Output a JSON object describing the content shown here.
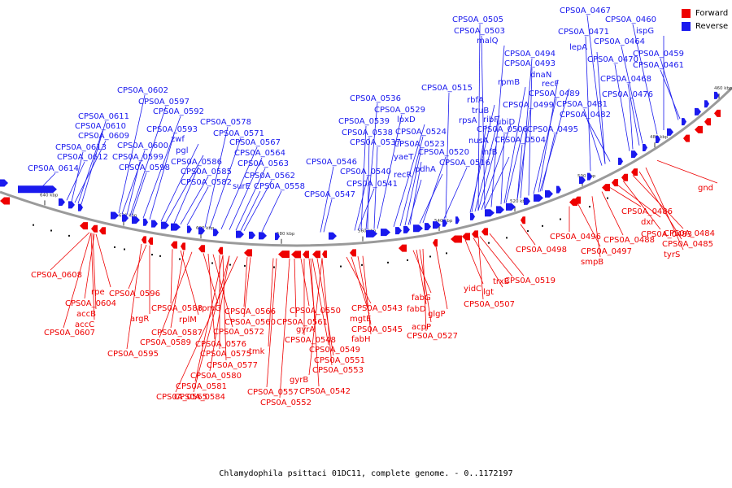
{
  "caption": "Chlamydophila psittaci 01DC11, complete genome. - 0..1172197",
  "legend": [
    {
      "label": "Forward",
      "color": "#ee0000"
    },
    {
      "label": "Reverse",
      "color": "#1a1aee"
    }
  ],
  "colors": {
    "forward": "#ee0000",
    "reverse": "#1a1aee",
    "backbone": "#9a9a9a"
  },
  "ticks": [
    "640 kbp",
    "620 kbp",
    "600 kbp",
    "580 kbp",
    "560 kbp",
    "540 kbp",
    "520 kbp",
    "500 kbp",
    "480 kbp",
    "460 kbp"
  ],
  "reverse_labels": [
    "CPS0A_0614",
    "CPS0A_0612",
    "CPS0A_0613",
    "CPS0A_0609",
    "CPS0A_0610",
    "CPS0A_0611",
    "CPS0A_0602",
    "CPS0A_0597",
    "CPS0A_0592",
    "CPS0A_0593",
    "CPS0A_0600",
    "CPS0A_0599",
    "CPS0A_0598",
    "zwf",
    "pgl",
    "CPS0A_0586",
    "CPS0A_0585",
    "CPS0A_0582",
    "CPS0A_0578",
    "CPS0A_0571",
    "CPS0A_0567",
    "CPS0A_0564",
    "CPS0A_0563",
    "CPS0A_0562",
    "surE",
    "CPS0A_0558",
    "CPS0A_0546",
    "CPS0A_0540",
    "CPS0A_0541",
    "CPS0A_0547",
    "CPS0A_0536",
    "CPS0A_0529",
    "CPS0A_0539",
    "CPS0A_0538",
    "CPS0A_0537",
    "lpxD",
    "CPS0A_0524",
    "CPS0A_0523",
    "yaeT",
    "recR",
    "pdhA",
    "CPS0A_0520",
    "CPS0A_0516",
    "CPS0A_0515",
    "rbfA",
    "truB",
    "rpsA",
    "ribF",
    "nusA",
    "infB",
    "CPS0A_0505",
    "CPS0A_0503",
    "malQ",
    "rpmB",
    "ubiD",
    "CPS0A_0506",
    "CPS0A_0504",
    "CPS0A_0494",
    "CPS0A_0493",
    "dnaN",
    "recF",
    "CPS0A_0489",
    "CPS0A_0499",
    "CPS0A_0495",
    "CPS0A_0467",
    "CPS0A_0460",
    "CPS0A_0471",
    "ispG",
    "lepA",
    "CPS0A_0464",
    "CPS0A_0459",
    "CPS0A_0470",
    "CPS0A_0461",
    "CPS0A_0468",
    "CPS0A_0476",
    "CPS0A_0481",
    "CPS0A_0482"
  ],
  "forward_labels": [
    "CPS0A_0608",
    "rpe",
    "CPS0A_0604",
    "accB",
    "accC",
    "CPS0A_0607",
    "CPS0A_0596",
    "argR",
    "CPS0A_0595",
    "CPS0A_0588",
    "rplM",
    "CPS0A_0587",
    "CPS0A_0589",
    "rpmG",
    "CPS0A_0576",
    "CPS0A_0572",
    "CPS0A_0575",
    "CPS0A_0577",
    "CPS0A_0580",
    "CPS0A_0581",
    "CPS0A_0584",
    "CPS0A_0565",
    "CPS0A_0566",
    "CPS0A_0560",
    "tmk",
    "CPS0A_0561",
    "CPS0A_0557",
    "CPS0A_0552",
    "CPS0A_0550",
    "gyrA",
    "CPS0A_0548",
    "CPS0A_0549",
    "CPS0A_0551",
    "CPS0A_0553",
    "gyrB",
    "CPS0A_0542",
    "CPS0A_0543",
    "mgtE",
    "CPS0A_0545",
    "fabH",
    "fabG",
    "fabD",
    "acpP",
    "CPS0A_0527",
    "glgP",
    "yidC",
    "lgt",
    "trxB",
    "CPS0A_0519",
    "CPS0A_0507",
    "CPS0A_0498",
    "CPS0A_0496",
    "CPS0A_0497",
    "smpB",
    "CPS0A_0488",
    "CPS0A_0486",
    "dxr",
    "CPS0A_0483",
    "CPS0A_0484",
    "CPS0A_0485",
    "tyrS",
    "gnd"
  ]
}
